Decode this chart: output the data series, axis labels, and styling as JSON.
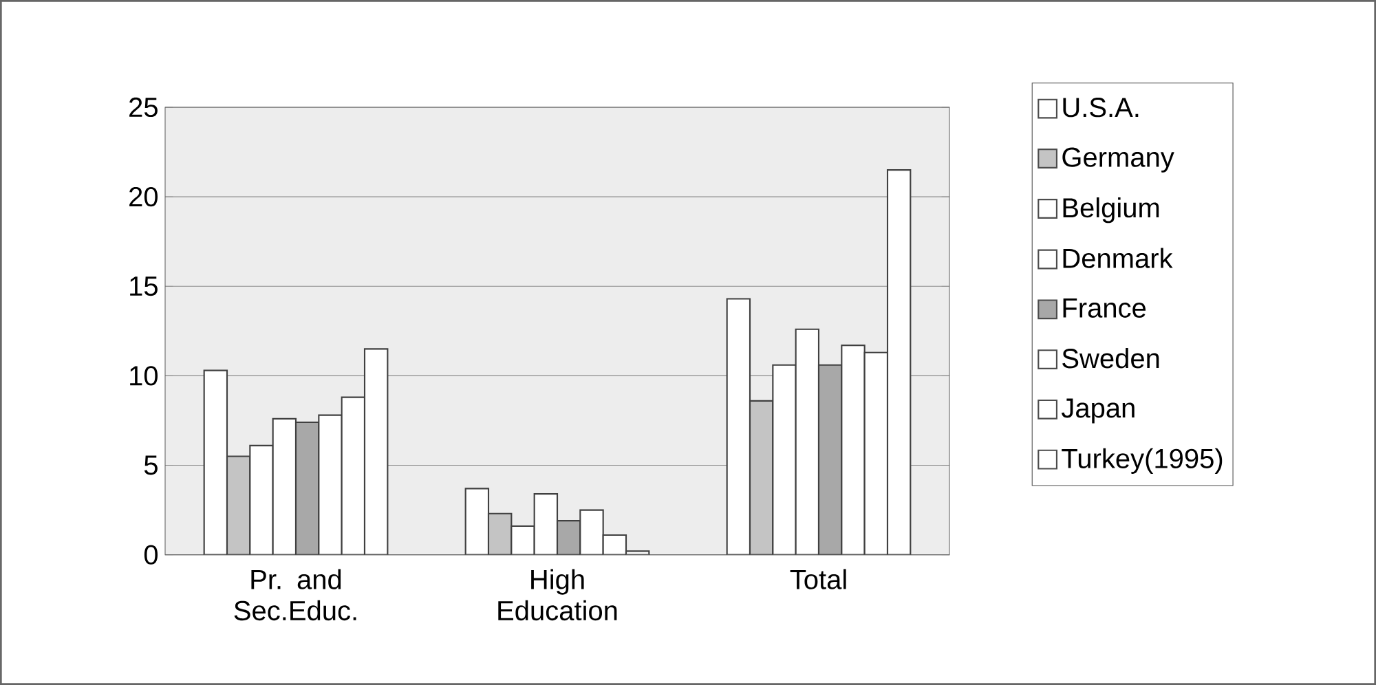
{
  "chart_data": {
    "type": "bar",
    "categories": [
      "Pr. and Sec.Educ.",
      "High Education",
      "Total"
    ],
    "series": [
      {
        "name": "U.S.A.",
        "color": "#ffffff",
        "values": [
          10.3,
          3.7,
          14.3
        ]
      },
      {
        "name": "Germany",
        "color": "#c4c4c4",
        "values": [
          5.5,
          2.3,
          8.6
        ]
      },
      {
        "name": "Belgium",
        "color": "#ffffff",
        "values": [
          6.1,
          1.6,
          10.6
        ]
      },
      {
        "name": "Denmark",
        "color": "#ffffff",
        "values": [
          7.6,
          3.4,
          12.6
        ]
      },
      {
        "name": "France",
        "color": "#a8a8a8",
        "values": [
          7.4,
          1.9,
          10.6
        ]
      },
      {
        "name": "Sweden",
        "color": "#ffffff",
        "values": [
          7.8,
          2.5,
          11.7
        ]
      },
      {
        "name": "Japan",
        "color": "#ffffff",
        "values": [
          8.8,
          1.1,
          11.3
        ]
      },
      {
        "name": "Turkey(1995)",
        "color": "#ffffff",
        "values": [
          11.5,
          0.2,
          21.5
        ]
      }
    ],
    "ylim": [
      0,
      25
    ],
    "yticks": [
      0,
      5,
      10,
      15,
      20,
      25
    ],
    "grid": "y",
    "legend": "right"
  }
}
